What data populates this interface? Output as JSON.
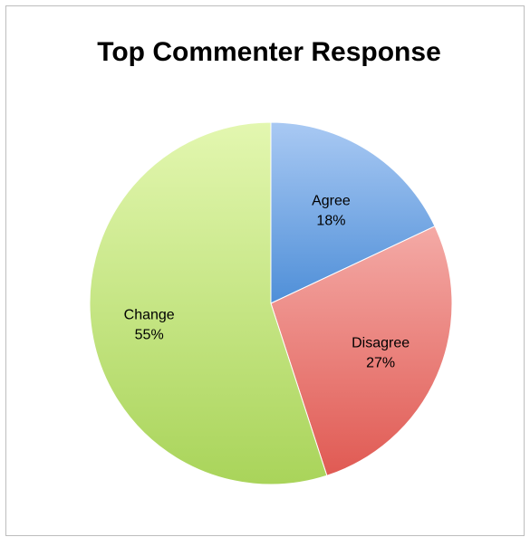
{
  "chart_data": {
    "type": "pie",
    "title": "Top Commenter Response",
    "slices": [
      {
        "label": "Agree",
        "value": 18,
        "pct_text": "18%",
        "color_light": "#a9c9f3",
        "color_dark": "#4f8fd8"
      },
      {
        "label": "Disagree",
        "value": 27,
        "pct_text": "27%",
        "color_light": "#f4aaa6",
        "color_dark": "#e05a53"
      },
      {
        "label": "Change",
        "value": 55,
        "pct_text": "55%",
        "color_light": "#e3f7b0",
        "color_dark": "#a9d45a"
      }
    ],
    "start_angle": "12 o'clock",
    "direction": "clockwise",
    "legend": "none",
    "data_labels": "inside"
  }
}
